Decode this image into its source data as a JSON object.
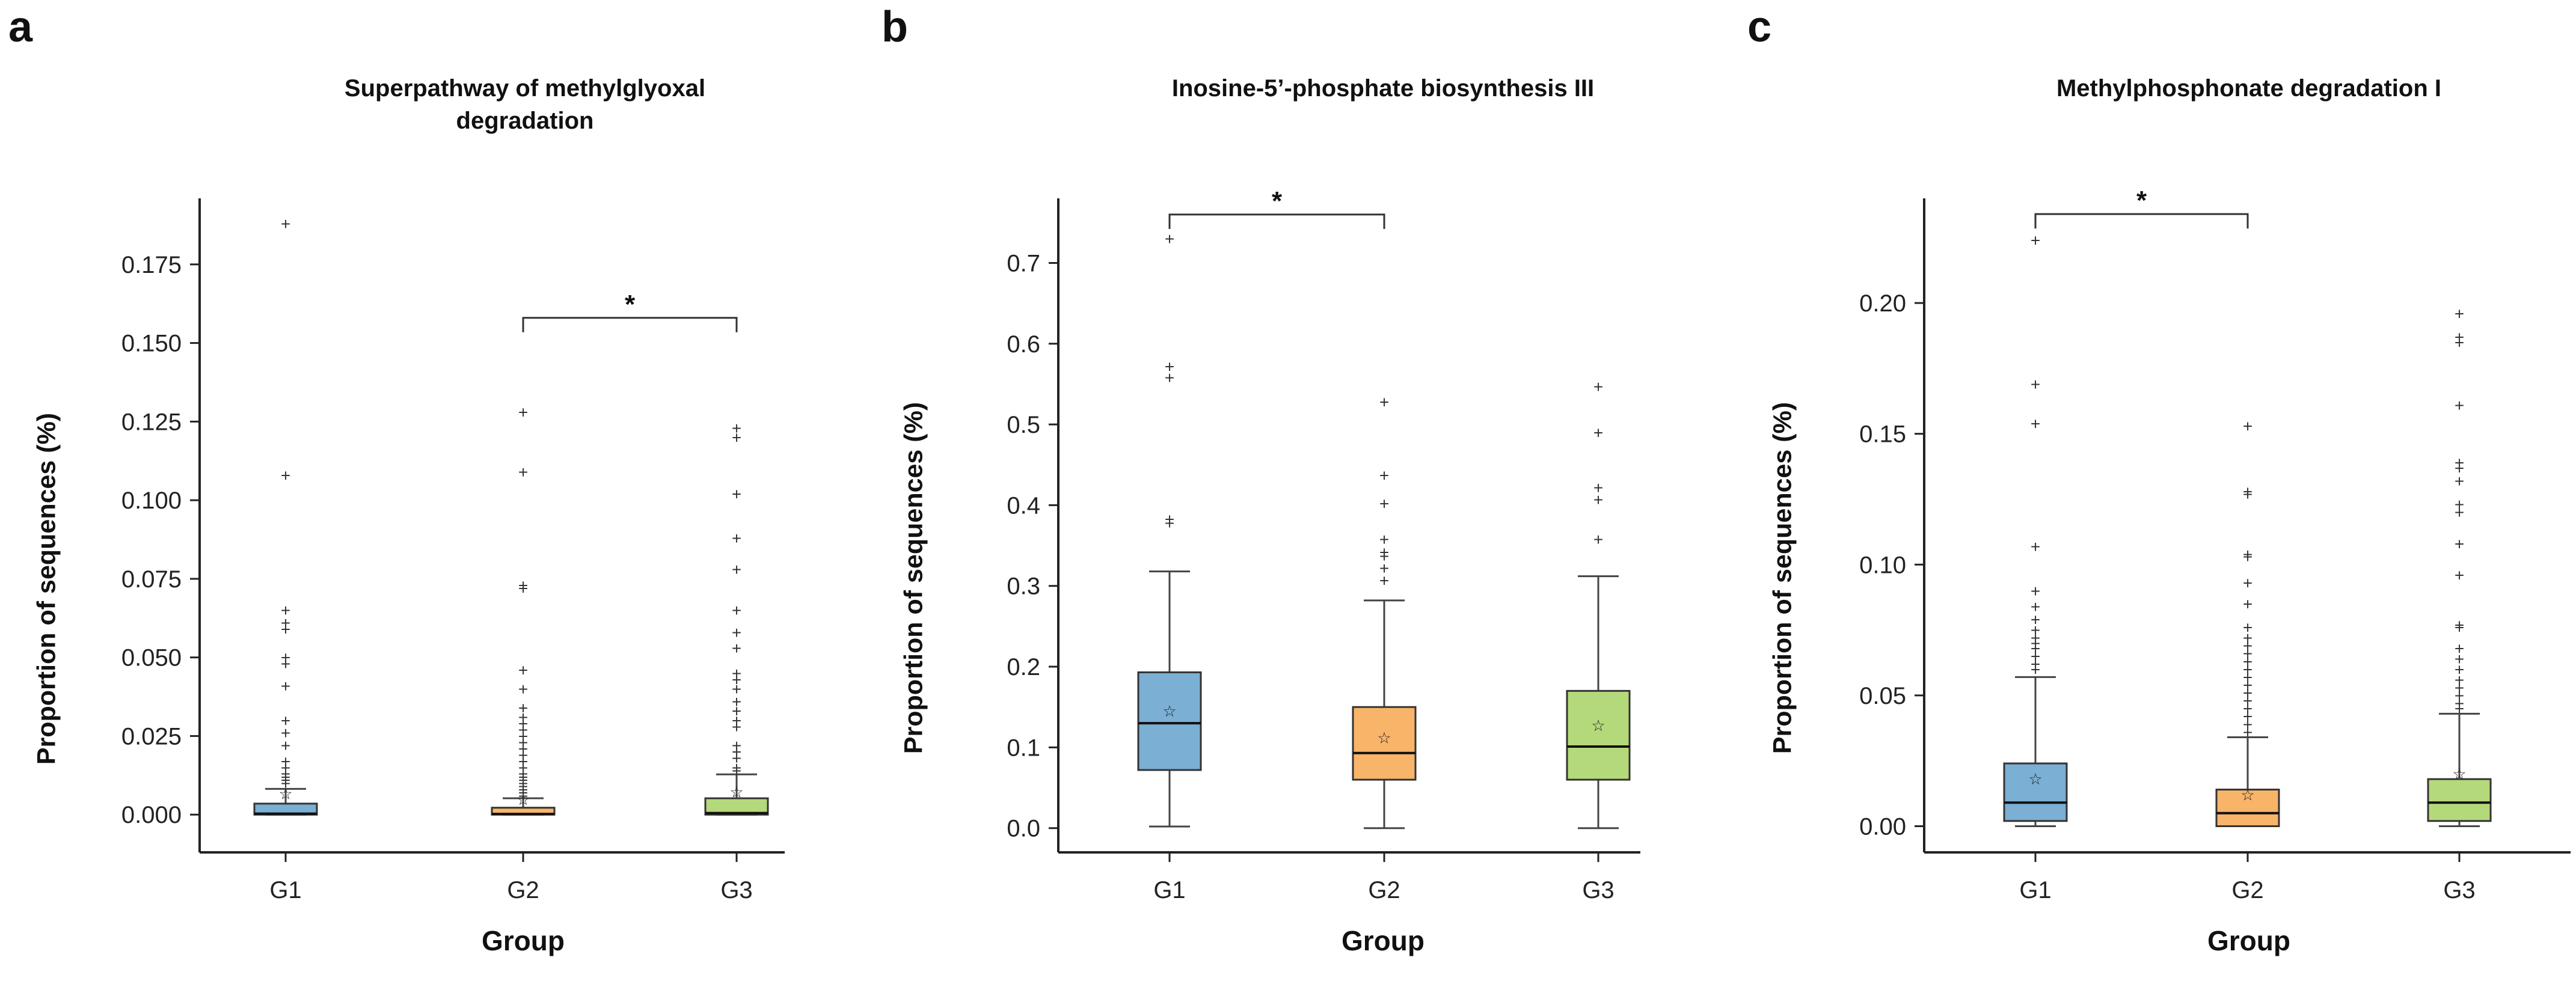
{
  "chart_data": [
    {
      "panel": "a",
      "type": "box",
      "title": "Superpathway of methylglyoxal degradation",
      "title_lines": [
        "Superpathway of methylglyoxal",
        "degradation"
      ],
      "xlabel": "Group",
      "ylabel": "Proportion of sequences (%)",
      "categories": [
        "G1",
        "G2",
        "G3"
      ],
      "colors": [
        "#7bafd4",
        "#f8b469",
        "#b4d97a"
      ],
      "ylim": [
        -0.012,
        0.196
      ],
      "yticks": [
        0.0,
        0.025,
        0.05,
        0.075,
        0.1,
        0.125,
        0.15,
        0.175
      ],
      "ytick_labels": [
        "0.000",
        "0.025",
        "0.050",
        "0.075",
        "0.100",
        "0.125",
        "0.150",
        "0.175"
      ],
      "boxes": [
        {
          "group": "G1",
          "min": 0.0,
          "q1": 0.0,
          "median": 0.0003,
          "q3": 0.0035,
          "max": 0.0082,
          "mean": 0.0066,
          "outliers": [
            0.188,
            0.108,
            0.065,
            0.061,
            0.059,
            0.05,
            0.048,
            0.041,
            0.03,
            0.026,
            0.022,
            0.017,
            0.015,
            0.013,
            0.012,
            0.011,
            0.01
          ]
        },
        {
          "group": "G2",
          "min": 0.0,
          "q1": 0.0,
          "median": 0.0002,
          "q3": 0.0022,
          "max": 0.0052,
          "mean": 0.0048,
          "outliers": [
            0.128,
            0.109,
            0.073,
            0.072,
            0.046,
            0.04,
            0.034,
            0.031,
            0.029,
            0.027,
            0.025,
            0.023,
            0.021,
            0.019,
            0.017,
            0.015,
            0.013,
            0.012,
            0.011,
            0.01,
            0.009,
            0.008,
            0.007,
            0.006
          ]
        },
        {
          "group": "G3",
          "min": 0.0,
          "q1": 0.0,
          "median": 0.0005,
          "q3": 0.0052,
          "max": 0.0128,
          "mean": 0.0072,
          "outliers": [
            0.123,
            0.12,
            0.102,
            0.088,
            0.078,
            0.065,
            0.058,
            0.053,
            0.045,
            0.043,
            0.04,
            0.036,
            0.033,
            0.03,
            0.028,
            0.022,
            0.02,
            0.018,
            0.015,
            0.014
          ]
        }
      ],
      "significance": [
        {
          "from": "G2",
          "to": "G3",
          "y": 0.158,
          "label": "*"
        }
      ]
    },
    {
      "panel": "b",
      "type": "box",
      "title": "Inosine-5’-phosphate biosynthesis III",
      "title_lines": [
        "Inosine-5’-phosphate biosynthesis III"
      ],
      "xlabel": "Group",
      "ylabel": "Proportion of sequences (%)",
      "categories": [
        "G1",
        "G2",
        "G3"
      ],
      "colors": [
        "#7bafd4",
        "#f8b469",
        "#b4d97a"
      ],
      "ylim": [
        -0.03,
        0.78
      ],
      "yticks": [
        0.0,
        0.1,
        0.2,
        0.3,
        0.4,
        0.5,
        0.6,
        0.7
      ],
      "ytick_labels": [
        "0.0",
        "0.1",
        "0.2",
        "0.3",
        "0.4",
        "0.5",
        "0.6",
        "0.7"
      ],
      "boxes": [
        {
          "group": "G1",
          "min": 0.002,
          "q1": 0.072,
          "median": 0.13,
          "q3": 0.193,
          "max": 0.318,
          "mean": 0.145,
          "outliers": [
            0.73,
            0.572,
            0.558,
            0.383,
            0.378
          ]
        },
        {
          "group": "G2",
          "min": 0.0,
          "q1": 0.06,
          "median": 0.093,
          "q3": 0.15,
          "max": 0.282,
          "mean": 0.112,
          "outliers": [
            0.528,
            0.437,
            0.402,
            0.358,
            0.342,
            0.337,
            0.322,
            0.307
          ]
        },
        {
          "group": "G3",
          "min": 0.0,
          "q1": 0.06,
          "median": 0.101,
          "q3": 0.17,
          "max": 0.312,
          "mean": 0.127,
          "outliers": [
            0.547,
            0.49,
            0.422,
            0.407,
            0.358
          ]
        }
      ],
      "significance": [
        {
          "from": "G1",
          "to": "G2",
          "y": 0.76,
          "label": "*"
        }
      ]
    },
    {
      "panel": "c",
      "type": "box",
      "title": "Methylphosphonate degradation I",
      "title_lines": [
        "Methylphosphonate degradation I"
      ],
      "xlabel": "Group",
      "ylabel": "Proportion of sequences (%)",
      "categories": [
        "G1",
        "G2",
        "G3"
      ],
      "colors": [
        "#7bafd4",
        "#f8b469",
        "#b4d97a"
      ],
      "ylim": [
        -0.01,
        0.24
      ],
      "yticks": [
        0.0,
        0.05,
        0.1,
        0.15,
        0.2
      ],
      "ytick_labels": [
        "0.00",
        "0.05",
        "0.10",
        "0.15",
        "0.20"
      ],
      "boxes": [
        {
          "group": "G1",
          "min": 0.0,
          "q1": 0.002,
          "median": 0.009,
          "q3": 0.024,
          "max": 0.057,
          "mean": 0.018,
          "outliers": [
            0.224,
            0.169,
            0.154,
            0.107,
            0.09,
            0.084,
            0.079,
            0.075,
            0.072,
            0.07,
            0.068,
            0.065,
            0.062,
            0.06
          ]
        },
        {
          "group": "G2",
          "min": 0.0,
          "q1": 0.0,
          "median": 0.005,
          "q3": 0.014,
          "max": 0.034,
          "mean": 0.012,
          "outliers": [
            0.153,
            0.128,
            0.127,
            0.104,
            0.103,
            0.093,
            0.085,
            0.076,
            0.072,
            0.069,
            0.066,
            0.063,
            0.06,
            0.057,
            0.054,
            0.051,
            0.048,
            0.045,
            0.042,
            0.039,
            0.036
          ]
        },
        {
          "group": "G3",
          "min": 0.0,
          "q1": 0.002,
          "median": 0.009,
          "q3": 0.018,
          "max": 0.043,
          "mean": 0.02,
          "outliers": [
            0.196,
            0.187,
            0.185,
            0.161,
            0.139,
            0.137,
            0.132,
            0.123,
            0.12,
            0.108,
            0.096,
            0.077,
            0.076,
            0.068,
            0.064,
            0.06,
            0.056,
            0.053,
            0.05,
            0.047,
            0.045
          ]
        }
      ],
      "significance": [
        {
          "from": "G1",
          "to": "G2",
          "y": 0.234,
          "label": "*"
        }
      ]
    }
  ]
}
